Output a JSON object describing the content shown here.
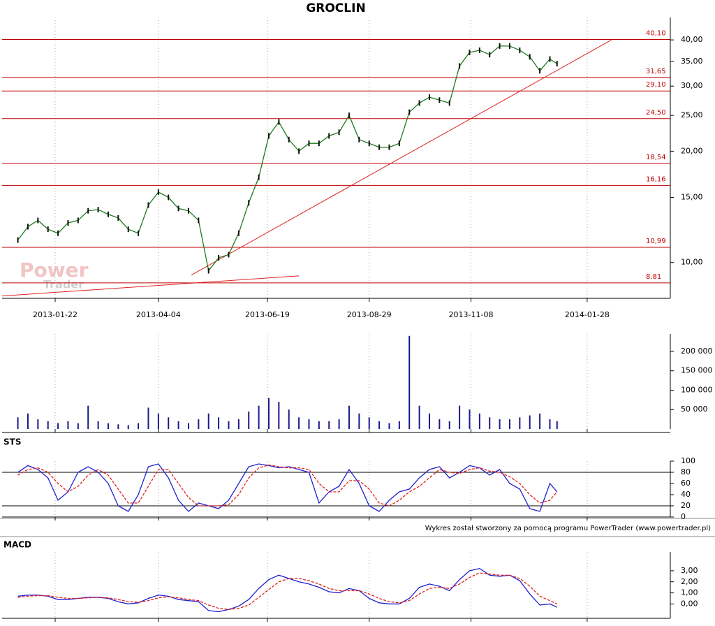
{
  "footer": "Wykres został stworzony za pomocą programu PowerTrader (www.powertrader.pl)",
  "chart_data": [
    {
      "type": "line",
      "title": "GROCLIN",
      "log_scale": true,
      "grid": true,
      "color": "#1a7a1a",
      "watermark": [
        "Power",
        "Trader"
      ],
      "x": [
        "2012-12-27",
        "2013-01-03",
        "2013-01-10",
        "2013-01-17",
        "2013-01-24",
        "2013-01-31",
        "2013-02-07",
        "2013-02-14",
        "2013-02-21",
        "2013-02-28",
        "2013-03-07",
        "2013-03-14",
        "2013-03-21",
        "2013-03-28",
        "2013-04-04",
        "2013-04-11",
        "2013-04-18",
        "2013-04-25",
        "2013-05-02",
        "2013-05-09",
        "2013-05-16",
        "2013-05-23",
        "2013-05-30",
        "2013-06-06",
        "2013-06-13",
        "2013-06-20",
        "2013-06-27",
        "2013-07-04",
        "2013-07-11",
        "2013-07-18",
        "2013-07-25",
        "2013-08-01",
        "2013-08-08",
        "2013-08-15",
        "2013-08-22",
        "2013-08-29",
        "2013-09-05",
        "2013-09-12",
        "2013-09-19",
        "2013-09-26",
        "2013-10-03",
        "2013-10-10",
        "2013-10-17",
        "2013-10-24",
        "2013-10-31",
        "2013-11-07",
        "2013-11-14",
        "2013-11-21",
        "2013-11-28",
        "2013-12-05",
        "2013-12-12",
        "2013-12-19",
        "2013-12-26",
        "2014-01-02",
        "2014-01-07"
      ],
      "values": [
        11.5,
        12.5,
        13.0,
        12.3,
        12.0,
        12.8,
        13.0,
        13.8,
        13.9,
        13.5,
        13.2,
        12.3,
        12.0,
        14.3,
        15.5,
        15.0,
        14.0,
        13.8,
        13.0,
        9.5,
        10.3,
        10.5,
        12.0,
        14.5,
        17.0,
        22.0,
        24.0,
        21.5,
        20.0,
        21.0,
        21.0,
        22.0,
        22.5,
        25.0,
        21.5,
        21.0,
        20.5,
        20.5,
        21.0,
        25.5,
        27.0,
        28.0,
        27.5,
        27.0,
        34.0,
        37.0,
        37.5,
        36.5,
        38.5,
        38.5,
        37.5,
        36.0,
        33.0,
        35.5,
        34.5
      ],
      "levels": [
        {
          "value": 40.1,
          "label": "40,10"
        },
        {
          "value": 31.65,
          "label": "31,65"
        },
        {
          "value": 29.1,
          "label": "29,10"
        },
        {
          "value": 24.5,
          "label": "24,50"
        },
        {
          "value": 18.54,
          "label": "18,54"
        },
        {
          "value": 16.16,
          "label": "16,16"
        },
        {
          "value": 10.99,
          "label": "10,99"
        },
        {
          "value": 8.81,
          "label": "8,81"
        }
      ],
      "trendlines": [
        {
          "x": [
            "2013-04-27",
            "2014-02-14"
          ],
          "values": [
            9.25,
            40
          ]
        },
        {
          "x": [
            "2012-12-16",
            "2013-07-11"
          ],
          "values": [
            8.12,
            9.2
          ]
        }
      ],
      "xlim": [
        "2012-12-16",
        "2014-03-27"
      ],
      "xticks": [
        "2013-01-22",
        "2013-04-04",
        "2013-06-19",
        "2013-08-29",
        "2013-11-08",
        "2014-01-28"
      ],
      "ylim": [
        8,
        46
      ],
      "yticks": [
        {
          "value": 10,
          "label": "10,00"
        },
        {
          "value": 15,
          "label": "15,00"
        },
        {
          "value": 20,
          "label": "20,00"
        },
        {
          "value": 25,
          "label": "25,00"
        },
        {
          "value": 30,
          "label": "30,00"
        },
        {
          "value": 35,
          "label": "35,00"
        },
        {
          "value": 40,
          "label": "40,00"
        }
      ]
    },
    {
      "type": "bar",
      "color": "#1a1a8c",
      "grid": true,
      "x": [
        "2012-12-27",
        "2013-01-03",
        "2013-01-10",
        "2013-01-17",
        "2013-01-24",
        "2013-01-31",
        "2013-02-07",
        "2013-02-14",
        "2013-02-21",
        "2013-02-28",
        "2013-03-07",
        "2013-03-14",
        "2013-03-21",
        "2013-03-28",
        "2013-04-04",
        "2013-04-11",
        "2013-04-18",
        "2013-04-25",
        "2013-05-02",
        "2013-05-09",
        "2013-05-16",
        "2013-05-23",
        "2013-05-30",
        "2013-06-06",
        "2013-06-13",
        "2013-06-20",
        "2013-06-27",
        "2013-07-04",
        "2013-07-11",
        "2013-07-18",
        "2013-07-25",
        "2013-08-01",
        "2013-08-08",
        "2013-08-15",
        "2013-08-22",
        "2013-08-29",
        "2013-09-05",
        "2013-09-12",
        "2013-09-19",
        "2013-09-26",
        "2013-10-03",
        "2013-10-10",
        "2013-10-17",
        "2013-10-24",
        "2013-10-31",
        "2013-11-07",
        "2013-11-14",
        "2013-11-21",
        "2013-11-28",
        "2013-12-05",
        "2013-12-12",
        "2013-12-19",
        "2013-12-26",
        "2014-01-02",
        "2014-01-07"
      ],
      "values": [
        30000,
        40000,
        25000,
        20000,
        15000,
        20000,
        15000,
        60000,
        20000,
        15000,
        12000,
        10000,
        15000,
        55000,
        40000,
        30000,
        20000,
        15000,
        25000,
        40000,
        30000,
        20000,
        25000,
        45000,
        60000,
        80000,
        70000,
        50000,
        30000,
        25000,
        20000,
        20000,
        25000,
        60000,
        40000,
        30000,
        20000,
        15000,
        20000,
        240000,
        60000,
        40000,
        25000,
        20000,
        60000,
        50000,
        40000,
        30000,
        25000,
        25000,
        30000,
        35000,
        40000,
        25000,
        20000
      ],
      "xlim": [
        "2012-12-16",
        "2014-03-27"
      ],
      "xticks": [
        "2013-01-22",
        "2013-04-04",
        "2013-06-19",
        "2013-08-29",
        "2013-11-08",
        "2014-01-28"
      ],
      "ylim": [
        0,
        245000
      ],
      "yticks": [
        {
          "value": 50000,
          "label": "50 000"
        },
        {
          "value": 100000,
          "label": "100 000"
        },
        {
          "value": 150000,
          "label": "150 000"
        },
        {
          "value": 200000,
          "label": "200 000"
        }
      ]
    },
    {
      "type": "line",
      "title": "STS",
      "grid": true,
      "levels": [
        20,
        80
      ],
      "x": [
        "2012-12-27",
        "2013-01-03",
        "2013-01-10",
        "2013-01-17",
        "2013-01-24",
        "2013-01-31",
        "2013-02-07",
        "2013-02-14",
        "2013-02-21",
        "2013-02-28",
        "2013-03-07",
        "2013-03-14",
        "2013-03-21",
        "2013-03-28",
        "2013-04-04",
        "2013-04-11",
        "2013-04-18",
        "2013-04-25",
        "2013-05-02",
        "2013-05-09",
        "2013-05-16",
        "2013-05-23",
        "2013-05-30",
        "2013-06-06",
        "2013-06-13",
        "2013-06-20",
        "2013-06-27",
        "2013-07-04",
        "2013-07-11",
        "2013-07-18",
        "2013-07-25",
        "2013-08-01",
        "2013-08-08",
        "2013-08-15",
        "2013-08-22",
        "2013-08-29",
        "2013-09-05",
        "2013-09-12",
        "2013-09-19",
        "2013-09-26",
        "2013-10-03",
        "2013-10-10",
        "2013-10-17",
        "2013-10-24",
        "2013-10-31",
        "2013-11-07",
        "2013-11-14",
        "2013-11-21",
        "2013-11-28",
        "2013-12-05",
        "2013-12-12",
        "2013-12-19",
        "2013-12-26",
        "2014-01-02",
        "2014-01-07"
      ],
      "series": [
        {
          "color": "#2020d0",
          "values": [
            80,
            92,
            85,
            70,
            30,
            45,
            80,
            90,
            80,
            60,
            20,
            10,
            40,
            90,
            95,
            70,
            30,
            10,
            25,
            20,
            15,
            30,
            60,
            90,
            95,
            92,
            88,
            90,
            85,
            80,
            25,
            45,
            55,
            85,
            60,
            20,
            10,
            30,
            45,
            50,
            70,
            85,
            90,
            70,
            80,
            92,
            88,
            75,
            85,
            60,
            50,
            15,
            10,
            60,
            45
          ]
        },
        {
          "color": "#e02020",
          "dashed": true,
          "values": [
            75,
            85,
            88,
            80,
            60,
            45,
            55,
            75,
            85,
            75,
            50,
            25,
            25,
            55,
            85,
            85,
            60,
            35,
            20,
            20,
            20,
            22,
            40,
            70,
            88,
            93,
            90,
            88,
            88,
            85,
            60,
            45,
            45,
            65,
            65,
            50,
            25,
            20,
            30,
            45,
            55,
            70,
            85,
            80,
            78,
            85,
            88,
            82,
            80,
            72,
            60,
            40,
            25,
            30,
            45
          ]
        }
      ],
      "xlim": [
        "2012-12-16",
        "2014-03-27"
      ],
      "xticks": [
        "2013-01-22",
        "2013-04-04",
        "2013-06-19",
        "2013-08-29",
        "2013-11-08",
        "2014-01-28"
      ],
      "ylim": [
        0,
        100
      ],
      "yticks": [
        0,
        20,
        40,
        60,
        80,
        100
      ]
    },
    {
      "type": "line",
      "title": "MACD",
      "grid": true,
      "x": [
        "2012-12-27",
        "2013-01-03",
        "2013-01-10",
        "2013-01-17",
        "2013-01-24",
        "2013-01-31",
        "2013-02-07",
        "2013-02-14",
        "2013-02-21",
        "2013-02-28",
        "2013-03-07",
        "2013-03-14",
        "2013-03-21",
        "2013-03-28",
        "2013-04-04",
        "2013-04-11",
        "2013-04-18",
        "2013-04-25",
        "2013-05-02",
        "2013-05-09",
        "2013-05-16",
        "2013-05-23",
        "2013-05-30",
        "2013-06-06",
        "2013-06-13",
        "2013-06-20",
        "2013-06-27",
        "2013-07-04",
        "2013-07-11",
        "2013-07-18",
        "2013-07-25",
        "2013-08-01",
        "2013-08-08",
        "2013-08-15",
        "2013-08-22",
        "2013-08-29",
        "2013-09-05",
        "2013-09-12",
        "2013-09-19",
        "2013-09-26",
        "2013-10-03",
        "2013-10-10",
        "2013-10-17",
        "2013-10-24",
        "2013-10-31",
        "2013-11-07",
        "2013-11-14",
        "2013-11-21",
        "2013-11-28",
        "2013-12-05",
        "2013-12-12",
        "2013-12-19",
        "2013-12-26",
        "2014-01-02",
        "2014-01-07"
      ],
      "series": [
        {
          "color": "#2020d0",
          "values": [
            0.7,
            0.8,
            0.8,
            0.7,
            0.4,
            0.4,
            0.5,
            0.6,
            0.6,
            0.5,
            0.2,
            0.0,
            0.1,
            0.5,
            0.8,
            0.7,
            0.4,
            0.3,
            0.2,
            -0.6,
            -0.7,
            -0.5,
            -0.2,
            0.4,
            1.4,
            2.2,
            2.6,
            2.3,
            2.0,
            1.8,
            1.5,
            1.1,
            1.0,
            1.4,
            1.2,
            0.5,
            0.1,
            0.0,
            0.0,
            0.5,
            1.5,
            1.8,
            1.6,
            1.2,
            2.2,
            3.0,
            3.2,
            2.6,
            2.5,
            2.6,
            2.1,
            0.9,
            -0.1,
            0.0,
            -0.3
          ]
        },
        {
          "color": "#e02020",
          "dashed": true,
          "values": [
            0.6,
            0.7,
            0.75,
            0.75,
            0.6,
            0.5,
            0.5,
            0.55,
            0.6,
            0.55,
            0.4,
            0.2,
            0.15,
            0.3,
            0.55,
            0.65,
            0.55,
            0.4,
            0.3,
            -0.1,
            -0.4,
            -0.5,
            -0.4,
            -0.1,
            0.6,
            1.3,
            2.0,
            2.3,
            2.3,
            2.1,
            1.8,
            1.4,
            1.2,
            1.2,
            1.2,
            0.9,
            0.5,
            0.2,
            0.1,
            0.3,
            0.9,
            1.4,
            1.5,
            1.4,
            1.8,
            2.4,
            2.8,
            2.7,
            2.6,
            2.6,
            2.3,
            1.6,
            0.7,
            0.3,
            0.0
          ]
        }
      ],
      "xlim": [
        "2012-12-16",
        "2014-03-27"
      ],
      "xticks": [
        "2013-01-22",
        "2013-04-04",
        "2013-06-19",
        "2013-08-29",
        "2013-11-08",
        "2014-01-28"
      ],
      "ylim": [
        -1.3,
        4.7
      ],
      "yticks": [
        {
          "value": 0,
          "label": "0,00"
        },
        {
          "value": 1,
          "label": "1,00"
        },
        {
          "value": 2,
          "label": "2,00"
        },
        {
          "value": 3,
          "label": "3,00"
        }
      ]
    }
  ]
}
